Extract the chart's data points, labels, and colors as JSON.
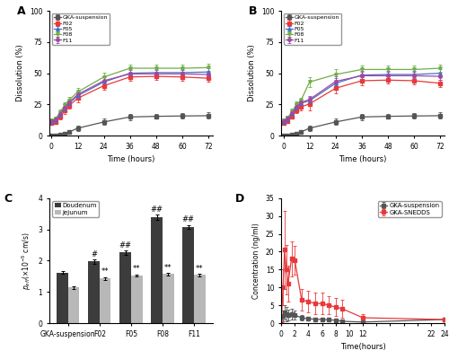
{
  "panel_A": {
    "title": "A",
    "xlabel": "Time (hours)",
    "ylabel": "Dissolution (%)",
    "time": [
      0,
      2,
      4,
      6,
      8,
      12,
      24,
      36,
      48,
      60,
      72
    ],
    "series": {
      "GKA-suspension": {
        "y": [
          0.0,
          0.3,
          0.8,
          1.5,
          3.0,
          6.0,
          11.0,
          15.0,
          15.5,
          15.8,
          16.0
        ],
        "yerr": [
          0.2,
          0.5,
          0.8,
          1.2,
          1.5,
          2.0,
          2.5,
          2.5,
          2.0,
          2.0,
          2.5
        ],
        "color": "#555555",
        "marker": "s",
        "linestyle": "-"
      },
      "F02": {
        "y": [
          10.0,
          11.0,
          15.0,
          20.0,
          24.0,
          30.0,
          40.0,
          47.0,
          47.5,
          47.0,
          46.0
        ],
        "yerr": [
          1.5,
          1.5,
          2.0,
          2.5,
          2.5,
          3.0,
          3.5,
          3.0,
          3.0,
          3.0,
          3.0
        ],
        "color": "#e8393a",
        "marker": "s",
        "linestyle": "-"
      },
      "F05": {
        "y": [
          11.0,
          12.5,
          17.0,
          22.0,
          26.0,
          32.0,
          43.0,
          50.0,
          50.5,
          50.5,
          51.0
        ],
        "yerr": [
          1.5,
          1.5,
          2.0,
          2.5,
          2.5,
          3.0,
          3.5,
          3.0,
          3.0,
          3.0,
          3.0
        ],
        "color": "#4472c4",
        "marker": "^",
        "linestyle": "-"
      },
      "F08": {
        "y": [
          12.0,
          14.0,
          19.0,
          24.5,
          28.5,
          35.0,
          47.0,
          54.0,
          54.0,
          54.0,
          54.5
        ],
        "yerr": [
          1.5,
          1.5,
          2.0,
          2.5,
          2.5,
          3.0,
          3.5,
          3.0,
          3.0,
          3.0,
          3.0
        ],
        "color": "#70ad47",
        "marker": "v",
        "linestyle": "-"
      },
      "F11": {
        "y": [
          11.5,
          13.0,
          17.5,
          22.5,
          26.5,
          33.0,
          44.0,
          49.5,
          49.5,
          49.5,
          49.0
        ],
        "yerr": [
          1.5,
          1.5,
          2.0,
          2.5,
          2.5,
          3.0,
          3.5,
          3.0,
          3.0,
          3.0,
          3.0
        ],
        "color": "#9e48a4",
        "marker": "o",
        "linestyle": "-"
      }
    },
    "ylim": [
      0,
      100
    ],
    "yticks": [
      0,
      25,
      50,
      75,
      100
    ],
    "xticks": [
      0,
      12,
      24,
      36,
      48,
      60,
      72
    ]
  },
  "panel_B": {
    "title": "B",
    "xlabel": "Time (hours)",
    "ylabel": "Dissolution (%)",
    "time": [
      0,
      2,
      4,
      6,
      8,
      12,
      24,
      36,
      48,
      60,
      72
    ],
    "series": {
      "GKA-suspension": {
        "y": [
          0.0,
          0.3,
          0.8,
          1.5,
          3.0,
          6.0,
          11.0,
          15.0,
          15.5,
          15.8,
          16.0
        ],
        "yerr": [
          0.2,
          0.5,
          0.8,
          1.2,
          1.5,
          2.0,
          2.5,
          2.5,
          2.0,
          2.0,
          2.5
        ],
        "color": "#555555",
        "marker": "s",
        "linestyle": "-"
      },
      "F02": {
        "y": [
          10.0,
          11.5,
          15.5,
          20.5,
          23.0,
          25.5,
          38.0,
          44.0,
          44.5,
          44.0,
          42.0
        ],
        "yerr": [
          1.5,
          1.5,
          2.0,
          2.5,
          2.5,
          5.0,
          4.0,
          3.5,
          3.0,
          3.0,
          3.0
        ],
        "color": "#e8393a",
        "marker": "s",
        "linestyle": "-"
      },
      "F05": {
        "y": [
          11.0,
          13.0,
          17.5,
          22.5,
          26.0,
          28.0,
          42.0,
          48.5,
          49.0,
          49.0,
          50.0
        ],
        "yerr": [
          1.5,
          1.5,
          2.0,
          2.5,
          2.5,
          3.0,
          4.0,
          3.5,
          3.0,
          3.0,
          3.0
        ],
        "color": "#4472c4",
        "marker": "^",
        "linestyle": "-"
      },
      "F08": {
        "y": [
          12.0,
          14.5,
          19.5,
          25.0,
          28.0,
          43.0,
          49.0,
          53.0,
          53.0,
          53.0,
          54.0
        ],
        "yerr": [
          1.5,
          1.5,
          2.0,
          2.5,
          2.5,
          4.0,
          4.0,
          3.5,
          3.0,
          3.0,
          3.0
        ],
        "color": "#70ad47",
        "marker": "v",
        "linestyle": "-"
      },
      "F11": {
        "y": [
          11.5,
          13.5,
          18.0,
          23.0,
          26.5,
          29.0,
          43.5,
          48.0,
          48.0,
          48.0,
          47.5
        ],
        "yerr": [
          1.5,
          1.5,
          2.0,
          2.5,
          2.5,
          3.0,
          4.0,
          3.5,
          3.0,
          3.0,
          3.0
        ],
        "color": "#9e48a4",
        "marker": "o",
        "linestyle": "-"
      }
    },
    "ylim": [
      0,
      100
    ],
    "yticks": [
      0,
      25,
      50,
      75,
      100
    ],
    "xticks": [
      0,
      12,
      24,
      36,
      48,
      60,
      72
    ]
  },
  "panel_C": {
    "title": "C",
    "categories": [
      "GKA-suspension",
      "F02",
      "F05",
      "F08",
      "F11"
    ],
    "duodenum": {
      "values": [
        1.62,
        1.97,
        2.26,
        3.39,
        3.08
      ],
      "errors": [
        0.05,
        0.07,
        0.07,
        0.08,
        0.06
      ],
      "color": "#3c3c3c"
    },
    "jejunum": {
      "values": [
        1.14,
        1.43,
        1.52,
        1.57,
        1.54
      ],
      "errors": [
        0.04,
        0.04,
        0.04,
        0.04,
        0.04
      ],
      "color": "#b8b8b8"
    },
    "annotations_duodenum": [
      "",
      "#",
      "##",
      "##",
      "##"
    ],
    "annotations_jejunum": [
      "",
      "**",
      "**",
      "**",
      "**"
    ],
    "ylim": [
      0,
      4
    ],
    "yticks": [
      0,
      1,
      2,
      3,
      4
    ]
  },
  "panel_D": {
    "title": "D",
    "xlabel": "Time(hours)",
    "ylabel": "Concentration (ng/ml)",
    "time": [
      0,
      0.25,
      0.5,
      0.75,
      1.0,
      1.5,
      2.0,
      3.0,
      4.0,
      5.0,
      6.0,
      7.0,
      8.0,
      9.0,
      12.0,
      24.0
    ],
    "series": {
      "GKA-suspension": {
        "y": [
          0.0,
          2.0,
          3.0,
          2.5,
          2.2,
          2.5,
          2.2,
          1.5,
          1.2,
          1.1,
          1.0,
          0.9,
          0.8,
          0.5,
          0.3,
          1.0
        ],
        "yerr": [
          0.0,
          1.5,
          2.0,
          2.0,
          1.5,
          1.5,
          1.2,
          0.8,
          0.5,
          0.5,
          0.4,
          0.4,
          0.4,
          0.3,
          0.2,
          0.5
        ],
        "color": "#555555",
        "marker": "s",
        "linestyle": "-"
      },
      "GKA-SNEDDS": {
        "y": [
          0.0,
          10.0,
          20.5,
          15.0,
          11.0,
          18.0,
          17.5,
          6.5,
          6.0,
          5.5,
          5.5,
          5.0,
          4.5,
          4.0,
          1.5,
          1.0
        ],
        "yerr": [
          0.0,
          5.0,
          11.0,
          7.0,
          5.0,
          5.0,
          4.0,
          3.0,
          3.0,
          3.0,
          3.0,
          2.5,
          2.5,
          2.5,
          1.0,
          0.5
        ],
        "color": "#e8393a",
        "marker": "s",
        "linestyle": "-"
      }
    },
    "ylim": [
      0,
      35
    ],
    "yticks": [
      0,
      5,
      10,
      15,
      20,
      25,
      30,
      35
    ],
    "xticks": [
      0,
      2,
      4,
      6,
      8,
      10,
      12,
      14,
      16,
      18,
      20,
      22,
      24
    ]
  }
}
